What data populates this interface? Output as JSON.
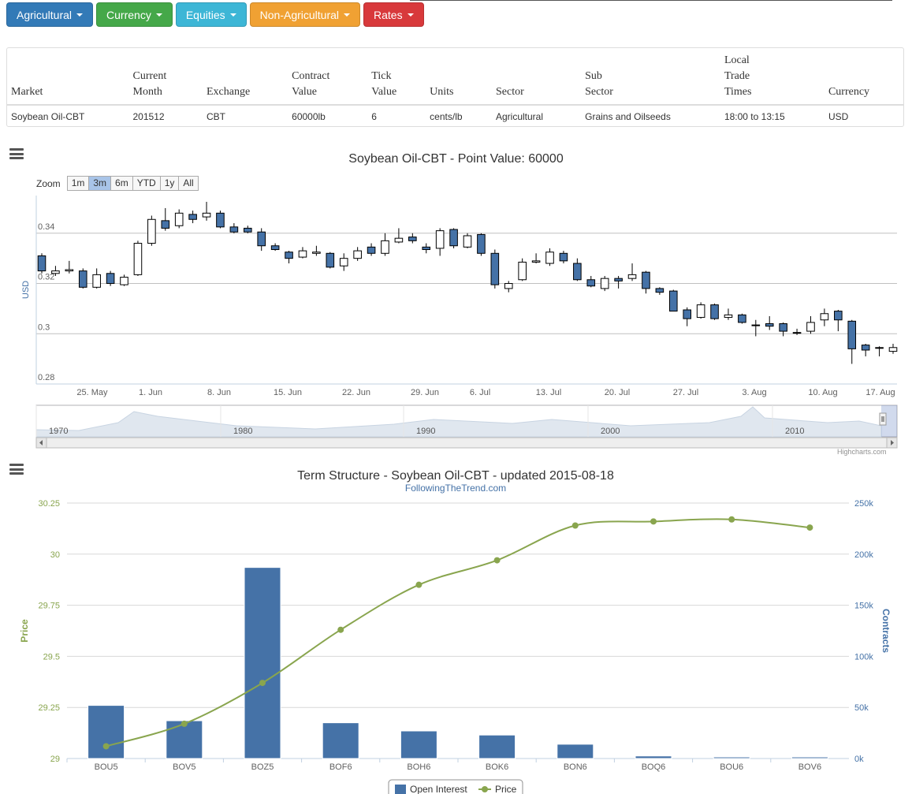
{
  "navbar": [
    {
      "label": "Agricultural",
      "color": "#337ab7"
    },
    {
      "label": "Currency",
      "color": "#45a849"
    },
    {
      "label": "Equities",
      "color": "#3db6d6"
    },
    {
      "label": "Non-Agricultural",
      "color": "#f0a133"
    },
    {
      "label": "Rates",
      "color": "#d8393b"
    }
  ],
  "info_table": {
    "headers": [
      "Market",
      "Current\nMonth",
      "Exchange",
      "Contract\nValue",
      "Tick\nValue",
      "Units",
      "Sector",
      "Sub\nSector",
      "Local\nTrade\nTimes",
      "Currency"
    ],
    "row": [
      "Soybean Oil-CBT",
      "201512",
      "CBT",
      "60000lb",
      "6",
      "cents/lb",
      "Agricultural",
      "Grains and Oilseeds",
      "18:00 to 13:15",
      "USD"
    ]
  },
  "price_chart": {
    "title": "Soybean Oil-CBT - Point Value: 60000",
    "zoom_label": "Zoom",
    "zoom_buttons": [
      "1m",
      "3m",
      "6m",
      "YTD",
      "1y",
      "All"
    ],
    "zoom_selected": "3m",
    "credits": "Highcharts.com"
  },
  "chart_data": [
    {
      "type": "candlestick",
      "ylabel": "USD",
      "ylim": [
        0.28,
        0.355
      ],
      "yticks": [
        0.28,
        0.3,
        0.32,
        0.34
      ],
      "ytick_labels": [
        "0.28",
        "0.3",
        "0.32",
        "0.34"
      ],
      "xtick_labels": [
        "25. May",
        "1. Jun",
        "8. Jun",
        "15. Jun",
        "22. Jun",
        "29. Jun",
        "6. Jul",
        "13. Jul",
        "20. Jul",
        "27. Jul",
        "3. Aug",
        "10. Aug",
        "17. Aug"
      ],
      "up_color": "#ffffff",
      "down_color": "#4572a7",
      "candles": [
        [
          0.331,
          0.325,
          0.332,
          0.324
        ],
        [
          0.324,
          0.325,
          0.327,
          0.323
        ],
        [
          0.325,
          0.3255,
          0.329,
          0.324
        ],
        [
          0.325,
          0.3185,
          0.326,
          0.318
        ],
        [
          0.3185,
          0.3235,
          0.326,
          0.318
        ],
        [
          0.324,
          0.32,
          0.325,
          0.319
        ],
        [
          0.3195,
          0.3225,
          0.3235,
          0.319
        ],
        [
          0.3235,
          0.336,
          0.337,
          0.323
        ],
        [
          0.336,
          0.3455,
          0.347,
          0.335
        ],
        [
          0.345,
          0.342,
          0.35,
          0.341
        ],
        [
          0.343,
          0.348,
          0.3495,
          0.342
        ],
        [
          0.3475,
          0.3455,
          0.349,
          0.344
        ],
        [
          0.3465,
          0.348,
          0.3525,
          0.345
        ],
        [
          0.348,
          0.3425,
          0.349,
          0.342
        ],
        [
          0.3425,
          0.3405,
          0.344,
          0.34
        ],
        [
          0.342,
          0.3405,
          0.343,
          0.34
        ],
        [
          0.3405,
          0.335,
          0.342,
          0.333
        ],
        [
          0.335,
          0.3335,
          0.336,
          0.333
        ],
        [
          0.3325,
          0.33,
          0.333,
          0.328
        ],
        [
          0.3305,
          0.333,
          0.3345,
          0.33
        ],
        [
          0.332,
          0.3325,
          0.335,
          0.331
        ],
        [
          0.332,
          0.3265,
          0.3325,
          0.326
        ],
        [
          0.327,
          0.33,
          0.332,
          0.325
        ],
        [
          0.33,
          0.333,
          0.3345,
          0.329
        ],
        [
          0.3345,
          0.332,
          0.336,
          0.331
        ],
        [
          0.332,
          0.337,
          0.34,
          0.331
        ],
        [
          0.3365,
          0.338,
          0.342,
          0.336
        ],
        [
          0.3385,
          0.337,
          0.34,
          0.336
        ],
        [
          0.3345,
          0.3335,
          0.336,
          0.332
        ],
        [
          0.334,
          0.341,
          0.342,
          0.331
        ],
        [
          0.3415,
          0.335,
          0.342,
          0.334
        ],
        [
          0.3345,
          0.339,
          0.34,
          0.334
        ],
        [
          0.3395,
          0.332,
          0.34,
          0.331
        ],
        [
          0.332,
          0.3195,
          0.3335,
          0.318
        ],
        [
          0.318,
          0.32,
          0.321,
          0.3165
        ],
        [
          0.3215,
          0.3285,
          0.33,
          0.321
        ],
        [
          0.3285,
          0.329,
          0.332,
          0.328
        ],
        [
          0.328,
          0.3325,
          0.334,
          0.327
        ],
        [
          0.332,
          0.329,
          0.333,
          0.328
        ],
        [
          0.328,
          0.3215,
          0.33,
          0.321
        ],
        [
          0.3215,
          0.319,
          0.323,
          0.3185
        ],
        [
          0.318,
          0.322,
          0.323,
          0.317
        ],
        [
          0.322,
          0.321,
          0.323,
          0.318
        ],
        [
          0.322,
          0.3235,
          0.328,
          0.321
        ],
        [
          0.3245,
          0.318,
          0.325,
          0.316
        ],
        [
          0.318,
          0.3165,
          0.3185,
          0.3155
        ],
        [
          0.317,
          0.309,
          0.3175,
          0.309
        ],
        [
          0.3095,
          0.306,
          0.3105,
          0.303
        ],
        [
          0.3065,
          0.3115,
          0.3125,
          0.306
        ],
        [
          0.3115,
          0.306,
          0.312,
          0.3055
        ],
        [
          0.3065,
          0.3075,
          0.31,
          0.3055
        ],
        [
          0.3075,
          0.3045,
          0.308,
          0.304
        ],
        [
          0.3035,
          0.3035,
          0.3055,
          0.299
        ],
        [
          0.304,
          0.303,
          0.307,
          0.3015
        ],
        [
          0.304,
          0.301,
          0.3045,
          0.299
        ],
        [
          0.3005,
          0.3005,
          0.302,
          0.2995
        ],
        [
          0.301,
          0.3045,
          0.307,
          0.3
        ],
        [
          0.3055,
          0.308,
          0.31,
          0.303
        ],
        [
          0.309,
          0.3055,
          0.3095,
          0.301
        ],
        [
          0.305,
          0.294,
          0.3055,
          0.288
        ],
        [
          0.2955,
          0.2935,
          0.296,
          0.291
        ],
        [
          0.2945,
          0.2945,
          0.295,
          0.291
        ],
        [
          0.293,
          0.2945,
          0.296,
          0.292
        ]
      ]
    },
    {
      "type": "bar+line",
      "title": "Term Structure - Soybean Oil-CBT - updated 2015-08-18",
      "subtitle": "FollowingTheTrend.com",
      "categories": [
        "BOU5",
        "BOV5",
        "BOZ5",
        "BOF6",
        "BOH6",
        "BOK6",
        "BON6",
        "BOQ6",
        "BOU6",
        "BOV6"
      ],
      "series": [
        {
          "name": "Open Interest",
          "type": "bar",
          "axis": "right",
          "values": [
            52000,
            37000,
            187000,
            35000,
            27000,
            23000,
            14000,
            2500,
            1500,
            1500
          ],
          "color": "#4572a7"
        },
        {
          "name": "Price",
          "type": "line",
          "axis": "left",
          "values": [
            29.06,
            29.17,
            29.37,
            29.63,
            29.85,
            29.97,
            30.14,
            30.16,
            30.17,
            30.13
          ],
          "color": "#89a54e"
        }
      ],
      "left_axis": {
        "label": "Price",
        "ylim": [
          29,
          30.25
        ],
        "ticks": [
          29,
          29.25,
          29.5,
          29.75,
          30,
          30.25
        ],
        "tick_labels": [
          "29",
          "29.25",
          "29.5",
          "29.75",
          "30",
          "30.25"
        ]
      },
      "right_axis": {
        "label": "Contracts",
        "ylim": [
          0,
          250000
        ],
        "ticks": [
          0,
          50000,
          100000,
          150000,
          200000,
          250000
        ],
        "tick_labels": [
          "0k",
          "50k",
          "100k",
          "150k",
          "200k",
          "250k"
        ]
      },
      "legend": "bottom-center"
    }
  ],
  "navigator": {
    "year_labels": [
      "1970",
      "1980",
      "1990",
      "2000",
      "2010"
    ]
  }
}
